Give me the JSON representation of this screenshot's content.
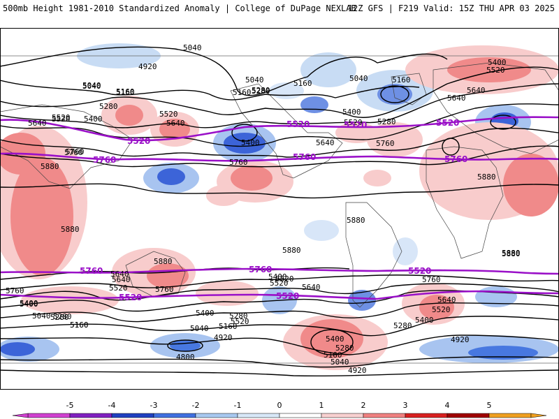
{
  "header": {
    "left_title": "500mb Height 1981-2010 Standardized Anomaly | College of DuPage NEXLAB",
    "right_title": "12Z GFS | F219 Valid: 15Z THU APR 03 2025"
  },
  "colorbar": {
    "ticks": [
      "-5",
      "-4",
      "-3",
      "-2",
      "-1",
      "0",
      "1",
      "2",
      "3",
      "4",
      "5"
    ],
    "colors": [
      "#d040d0",
      "#8020c0",
      "#2040c0",
      "#4070e0",
      "#a8c8f0",
      "#d8e8f8",
      "#ffffff",
      "#f8d0d0",
      "#f08080",
      "#d82020",
      "#a00000",
      "#f0a020"
    ]
  },
  "contours": {
    "black_labels": [
      "5040",
      "4920",
      "5040",
      "5160",
      "5280",
      "5400",
      "5520",
      "5640",
      "5760",
      "5880",
      "5040",
      "5160",
      "5280",
      "5160",
      "5040",
      "5400",
      "5520",
      "5640",
      "5160",
      "5280",
      "5640",
      "5760",
      "5880",
      "5880",
      "5880",
      "5880",
      "5880",
      "5760",
      "5640",
      "5520",
      "5520",
      "5400",
      "5280",
      "5160",
      "5040",
      "5760",
      "5640",
      "5520",
      "5760",
      "5640",
      "5520",
      "5400",
      "5280",
      "5160",
      "5040",
      "4920",
      "4800",
      "5400",
      "5520",
      "5640",
      "5400",
      "5280",
      "5160",
      "5040",
      "4920",
      "5640",
      "5520",
      "5400",
      "5280",
      "5760",
      "5400",
      "5520",
      "5280",
      "5160",
      "5040",
      "4920",
      "5520",
      "5640",
      "5400",
      "5760",
      "5880",
      "5880",
      "5400",
      "5280",
      "5160"
    ],
    "purple_labels": [
      "5520",
      "5520",
      "5760",
      "5520",
      "5520",
      "5760",
      "5760",
      "5760",
      "5760",
      "5520",
      "5520",
      "5520"
    ]
  }
}
